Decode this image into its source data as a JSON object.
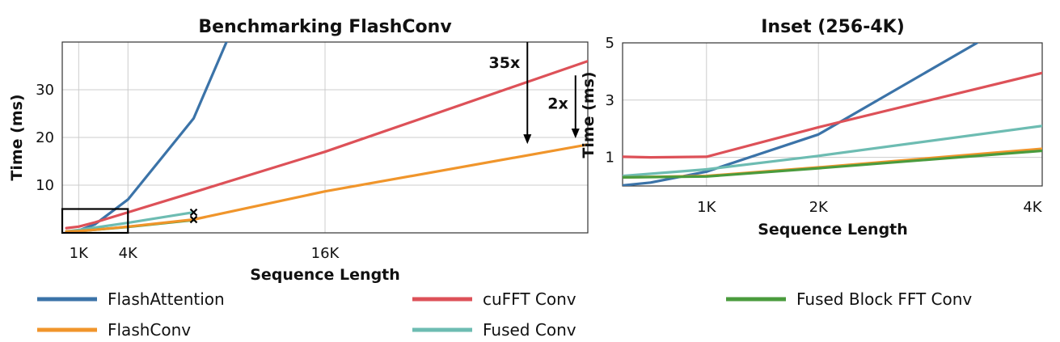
{
  "colors": {
    "flashattention": "#3b73a8",
    "cufft": "#dd5158",
    "fused_block": "#4a9b3d",
    "flashconv": "#f0952b",
    "fused_conv": "#6dbcb2",
    "grid": "#cccccc",
    "axis": "#333333",
    "text": "#111111"
  },
  "legend": {
    "items": [
      {
        "label": "FlashAttention",
        "color_key": "flashattention"
      },
      {
        "label": "cuFFT Conv",
        "color_key": "cufft"
      },
      {
        "label": "Fused Block FFT Conv",
        "color_key": "fused_block"
      },
      {
        "label": "FlashConv",
        "color_key": "flashconv"
      },
      {
        "label": "Fused Conv",
        "color_key": "fused_conv"
      }
    ]
  },
  "chart_data": [
    {
      "type": "line",
      "title": "Benchmarking FlashConv",
      "xlabel": "Sequence Length",
      "ylabel": "Time (ms)",
      "xlim": [
        0,
        32768
      ],
      "ylim": [
        0,
        40
      ],
      "xticks": [
        1024,
        4096,
        16384
      ],
      "xtick_labels": [
        "1K",
        "4K",
        "16K"
      ],
      "yticks": [
        10,
        20,
        30
      ],
      "ytick_labels": [
        "10",
        "20",
        "30"
      ],
      "grid": true,
      "series": [
        {
          "name": "FlashAttention",
          "color_key": "flashattention",
          "x": [
            256,
            1024,
            2048,
            4096,
            6144,
            8192,
            10240
          ],
          "y": [
            0.1,
            0.5,
            1.8,
            7,
            15.5,
            24,
            40
          ]
        },
        {
          "name": "cuFFT Conv",
          "color_key": "cufft",
          "x": [
            256,
            1024,
            2048,
            4096,
            8192,
            16384,
            32768
          ],
          "y": [
            1,
            1.3,
            2.2,
            4.3,
            8.5,
            17,
            36
          ]
        },
        {
          "name": "Fused Conv",
          "color_key": "fused_conv",
          "x": [
            256,
            1024,
            2048,
            4096,
            8192
          ],
          "y": [
            0.3,
            0.6,
            1.1,
            2.1,
            4.3
          ]
        },
        {
          "name": "Fused Block FFT Conv",
          "color_key": "fused_block",
          "x": [
            256,
            1024,
            2048,
            4096,
            8192
          ],
          "y": [
            0.3,
            0.35,
            0.65,
            1.25,
            2.7
          ]
        },
        {
          "name": "FlashConv",
          "color_key": "flashconv",
          "x": [
            256,
            1024,
            2048,
            4096,
            8192,
            16384,
            32768
          ],
          "y": [
            0.3,
            0.35,
            0.65,
            1.3,
            2.8,
            8.7,
            18.5
          ]
        }
      ],
      "markers": [
        {
          "x": 8192,
          "y": 4.3
        },
        {
          "x": 8192,
          "y": 2.8
        }
      ],
      "inset_box": {
        "x": [
          0,
          4096
        ],
        "y": [
          0,
          5
        ]
      },
      "annotations": [
        {
          "label": "35x",
          "x": 29000,
          "y_from": 40,
          "y_to": 18.8
        },
        {
          "label": "2x",
          "x": 32000,
          "y_from": 33,
          "y_to": 20
        }
      ]
    },
    {
      "type": "line",
      "title": "Inset (256-4K)",
      "xlabel": "Sequence Length",
      "ylabel": "Time (ms)",
      "xlim": [
        256,
        4096
      ],
      "ylim": [
        0,
        5
      ],
      "xticks": [
        1024,
        2048,
        4096
      ],
      "xtick_labels": [
        "1K",
        "2K",
        "4K"
      ],
      "yticks": [
        1,
        3,
        5
      ],
      "ytick_labels": [
        "1",
        "3",
        "5"
      ],
      "grid": true,
      "series": [
        {
          "name": "FlashAttention",
          "color_key": "flashattention",
          "x": [
            256,
            512,
            1024,
            2048,
            3500
          ],
          "y": [
            0.02,
            0.12,
            0.5,
            1.8,
            5.0
          ]
        },
        {
          "name": "cuFFT Conv",
          "color_key": "cufft",
          "x": [
            256,
            512,
            1024,
            2048,
            4096
          ],
          "y": [
            1.02,
            1.0,
            1.02,
            2.05,
            3.95
          ]
        },
        {
          "name": "Fused Conv",
          "color_key": "fused_conv",
          "x": [
            256,
            1024,
            2048,
            4096
          ],
          "y": [
            0.35,
            0.58,
            1.05,
            2.1
          ]
        },
        {
          "name": "FlashConv",
          "color_key": "flashconv",
          "x": [
            256,
            1024,
            2048,
            4096
          ],
          "y": [
            0.3,
            0.35,
            0.65,
            1.3
          ]
        },
        {
          "name": "Fused Block FFT Conv",
          "color_key": "fused_block",
          "x": [
            256,
            1024,
            2048,
            4096
          ],
          "y": [
            0.3,
            0.33,
            0.62,
            1.23
          ]
        }
      ]
    }
  ]
}
